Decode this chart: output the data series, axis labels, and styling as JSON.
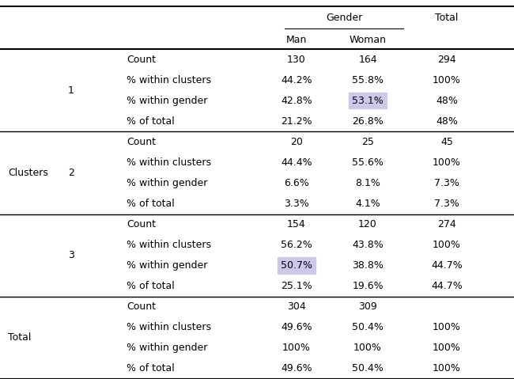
{
  "col_header_group": "Gender",
  "col_headers": [
    "Man",
    "Woman",
    "Total"
  ],
  "row_labels_left": [
    "",
    "",
    "",
    "",
    "Clusters",
    "",
    "",
    "",
    "",
    "",
    "",
    "",
    "Total",
    "",
    "",
    ""
  ],
  "row_labels_mid": [
    "1",
    "",
    "",
    "",
    "2",
    "",
    "",
    "",
    "3",
    "",
    "",
    "",
    "",
    "",
    "",
    ""
  ],
  "row_labels_stat": [
    "Count",
    "% within clusters",
    "% within gender",
    "% of total",
    "Count",
    "% within clusters",
    "% within gender",
    "% of total",
    "Count",
    "% within clusters",
    "% within gender",
    "% of total",
    "Count",
    "% within clusters",
    "% within gender",
    "% of total"
  ],
  "data": [
    [
      "130",
      "164",
      "294"
    ],
    [
      "44.2%",
      "55.8%",
      "100%"
    ],
    [
      "42.8%",
      "53.1%",
      "48%"
    ],
    [
      "21.2%",
      "26.8%",
      "48%"
    ],
    [
      "20",
      "25",
      "45"
    ],
    [
      "44.4%",
      "55.6%",
      "100%"
    ],
    [
      "6.6%",
      "8.1%",
      "7.3%"
    ],
    [
      "3.3%",
      "4.1%",
      "7.3%"
    ],
    [
      "154",
      "120",
      "274"
    ],
    [
      "56.2%",
      "43.8%",
      "100%"
    ],
    [
      "50.7%",
      "38.8%",
      "44.7%"
    ],
    [
      "25.1%",
      "19.6%",
      "44.7%"
    ],
    [
      "304",
      "309",
      ""
    ],
    [
      "49.6%",
      "50.4%",
      "100%"
    ],
    [
      "100%",
      "100%",
      "100%"
    ],
    [
      "49.6%",
      "50.4%",
      "100%"
    ]
  ],
  "highlighted_cells": [
    [
      2,
      1,
      "#ccc8e8"
    ],
    [
      10,
      0,
      "#ccc8e8"
    ]
  ],
  "cluster_label_rows": [
    0,
    11
  ],
  "total_label_rows": [
    12,
    15
  ],
  "n_rows": 16,
  "group_separators": [
    4,
    8,
    12
  ],
  "background_color": "#ffffff",
  "text_color": "#000000",
  "font_size": 9.0
}
